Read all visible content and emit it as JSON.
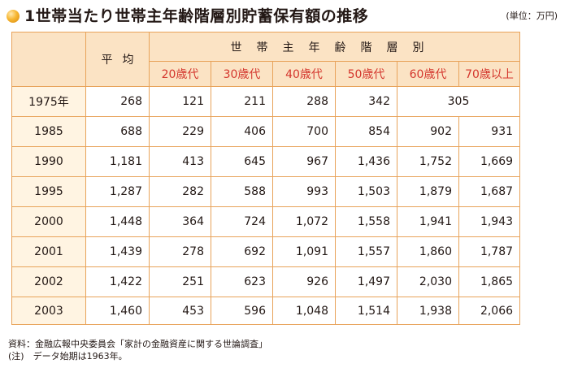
{
  "header": {
    "title": "1世帯当たり世帯主年齢階層別貯蓄保有額の推移",
    "unit": "(単位：万円)"
  },
  "table": {
    "avg_label": "平均",
    "group_label": "世帯主年齢階層別",
    "age_columns": [
      "20歳代",
      "30歳代",
      "40歳代",
      "50歳代",
      "60歳代",
      "70歳以上"
    ],
    "rows": [
      {
        "year": "1975年",
        "avg": "268",
        "values": [
          "121",
          "211",
          "288",
          "342"
        ],
        "merged_60_70": "305"
      },
      {
        "year": "1985",
        "avg": "688",
        "values": [
          "229",
          "406",
          "700",
          "854",
          "902",
          "931"
        ]
      },
      {
        "year": "1990",
        "avg": "1,181",
        "values": [
          "413",
          "645",
          "967",
          "1,436",
          "1,752",
          "1,669"
        ]
      },
      {
        "year": "1995",
        "avg": "1,287",
        "values": [
          "282",
          "588",
          "993",
          "1,503",
          "1,879",
          "1,687"
        ]
      },
      {
        "year": "2000",
        "avg": "1,448",
        "values": [
          "364",
          "724",
          "1,072",
          "1,558",
          "1,941",
          "1,943"
        ]
      },
      {
        "year": "2001",
        "avg": "1,439",
        "values": [
          "278",
          "692",
          "1,091",
          "1,557",
          "1,860",
          "1,787"
        ]
      },
      {
        "year": "2002",
        "avg": "1,422",
        "values": [
          "251",
          "623",
          "926",
          "1,497",
          "2,030",
          "1,865"
        ]
      },
      {
        "year": "2003",
        "avg": "1,460",
        "values": [
          "453",
          "596",
          "1,048",
          "1,514",
          "1,938",
          "2,066"
        ]
      }
    ]
  },
  "footnotes": {
    "source": "資料：金融広報中央委員会「家計の金融資産に関する世論調査」",
    "note": "(注)　データ始期は1963年。"
  },
  "colors": {
    "border": "#e8a35a",
    "header_bg": "#fbe3c4",
    "year_bg": "#fff4e2",
    "age_text": "#d4362d"
  }
}
